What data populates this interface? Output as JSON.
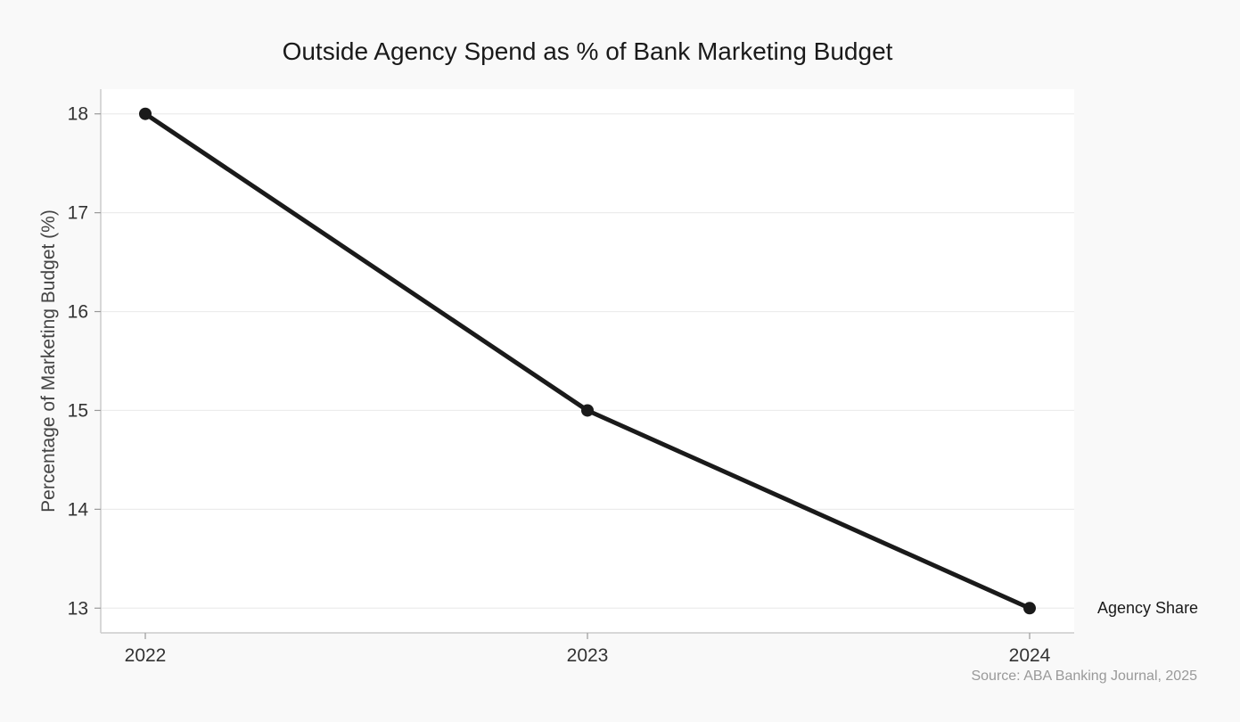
{
  "chart_data": {
    "type": "line",
    "title": "Outside Agency Spend as % of Bank Marketing Budget",
    "xlabel": "",
    "ylabel": "Percentage of Marketing Budget (%)",
    "x": [
      "2022",
      "2023",
      "2024"
    ],
    "series": [
      {
        "name": "Agency Share",
        "values": [
          18,
          15,
          13
        ],
        "color": "#1a1a1a"
      }
    ],
    "yticks": [
      "13",
      "14",
      "15",
      "16",
      "17",
      "18"
    ],
    "ylim": [
      12.75,
      18.25
    ],
    "grid": "horizontal",
    "legend": "end-of-line label",
    "source": "Source: ABA Banking Journal, 2025"
  }
}
